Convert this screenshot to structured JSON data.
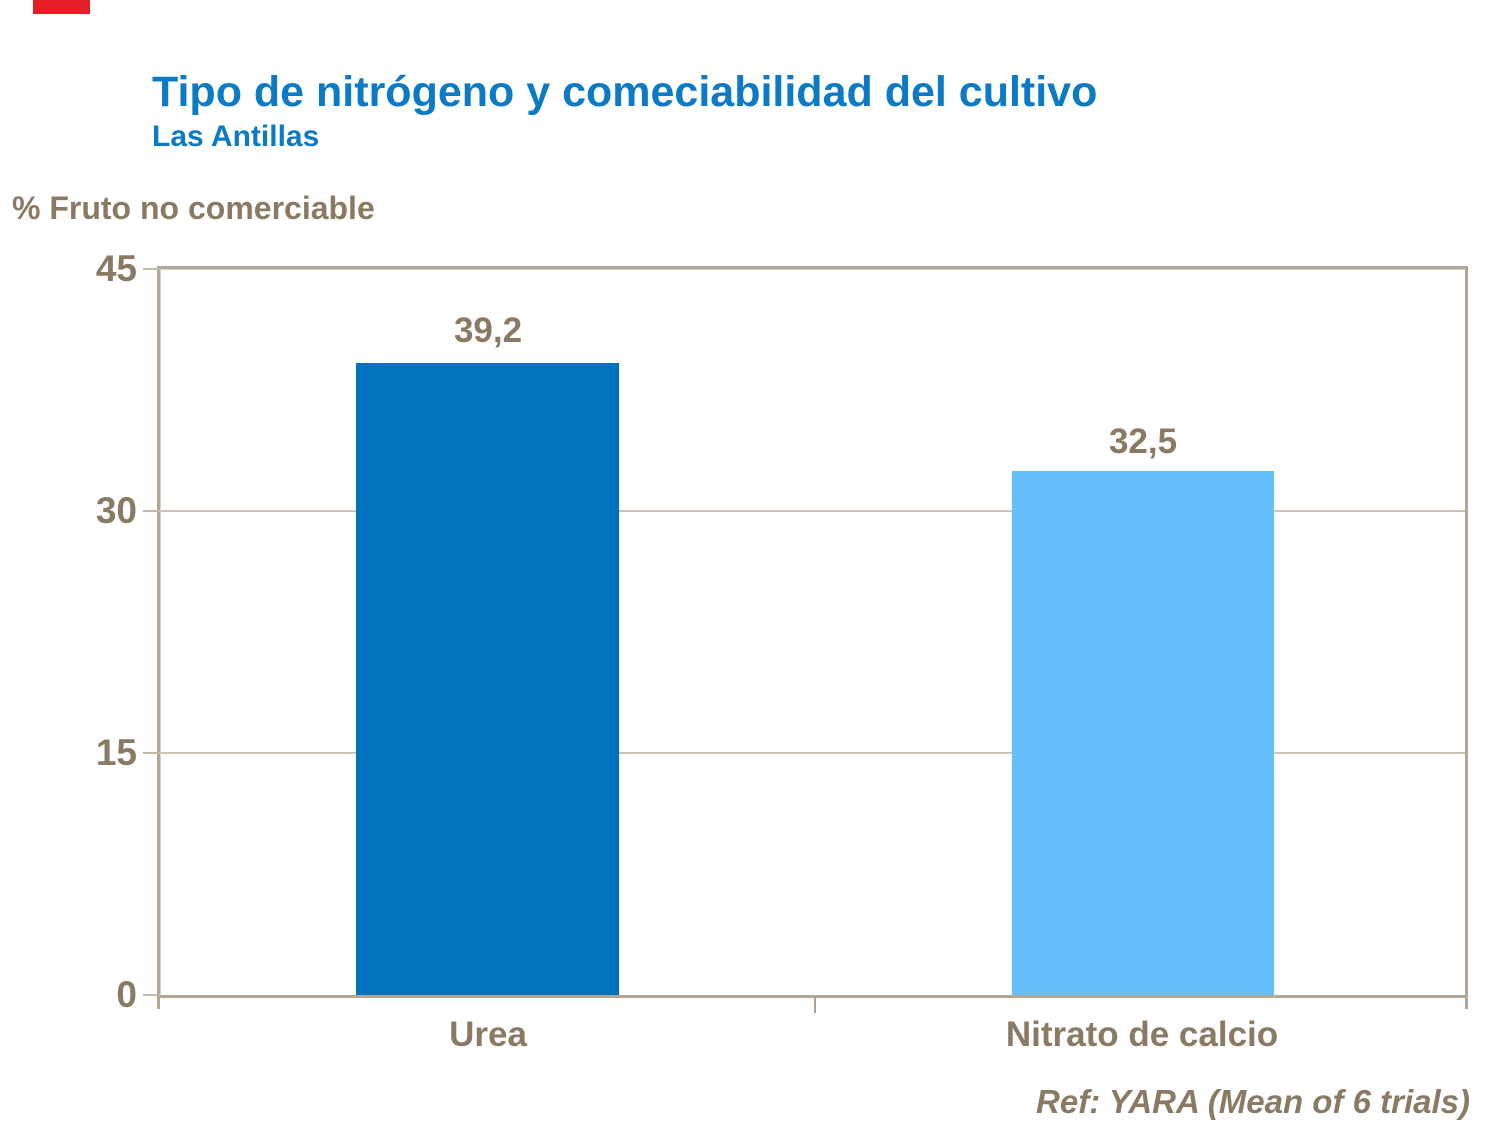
{
  "slide": {
    "title": "Tipo de nitrógeno y comeciabilidad del cultivo",
    "subtitle": "Las Antillas",
    "axis_title": "% Fruto no comerciable",
    "footer": "Ref: YARA (Mean of 6 trials)"
  },
  "colors": {
    "title_blue": "#0d7ac6",
    "text_brown": "#8a7a63",
    "axis_tan": "#b1a697",
    "gridline_tan": "#ccc3b5",
    "accent_red": "#e31e25",
    "bar_dark_blue": "#0372be",
    "bar_light_blue": "#66befa"
  },
  "chart_data": {
    "type": "bar",
    "title": "Tipo de nitrógeno y comeciabilidad del cultivo",
    "subtitle": "Las Antillas",
    "categories": [
      "Urea",
      "Nitrato de calcio"
    ],
    "values": [
      39.2,
      32.5
    ],
    "value_labels": [
      "39,2",
      "32,5"
    ],
    "bar_colors": [
      "#0372be",
      "#66befa"
    ],
    "xlabel": "",
    "ylabel": "% Fruto no comerciable",
    "ylim": [
      0,
      45
    ],
    "yticks": [
      0,
      15,
      30,
      45
    ],
    "grid": true,
    "legend_position": "none",
    "annotation": "Ref: YARA (Mean of 6 trials)"
  }
}
